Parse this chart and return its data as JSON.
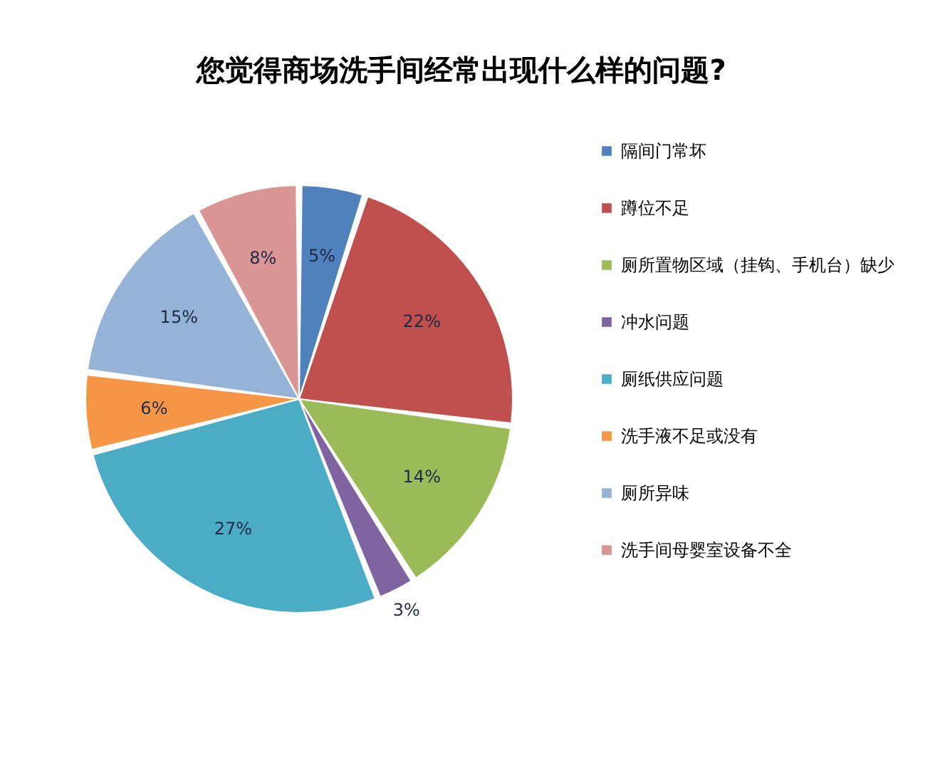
{
  "chart_data": {
    "type": "pie",
    "title": "您觉得商场洗手间经常出现什么样的问题?",
    "categories": [
      "隔间门常坏",
      "蹲位不足",
      "厕所置物区域（挂钩、手机台）缺少",
      "冲水问题",
      "厕纸供应问题",
      "洗手液不足或没有",
      "厕所异味",
      "洗手间母婴室设备不全"
    ],
    "values": [
      5,
      22,
      14,
      3,
      27,
      6,
      15,
      8
    ],
    "value_labels": [
      "5%",
      "22%",
      "14%",
      "3%",
      "27%",
      "6%",
      "15%",
      "8%"
    ],
    "colors": [
      "#4f81bd",
      "#c0504d",
      "#9bbb59",
      "#8064a2",
      "#4bacc6",
      "#f79646",
      "#95b3d7",
      "#d99694"
    ],
    "legend": "right"
  }
}
